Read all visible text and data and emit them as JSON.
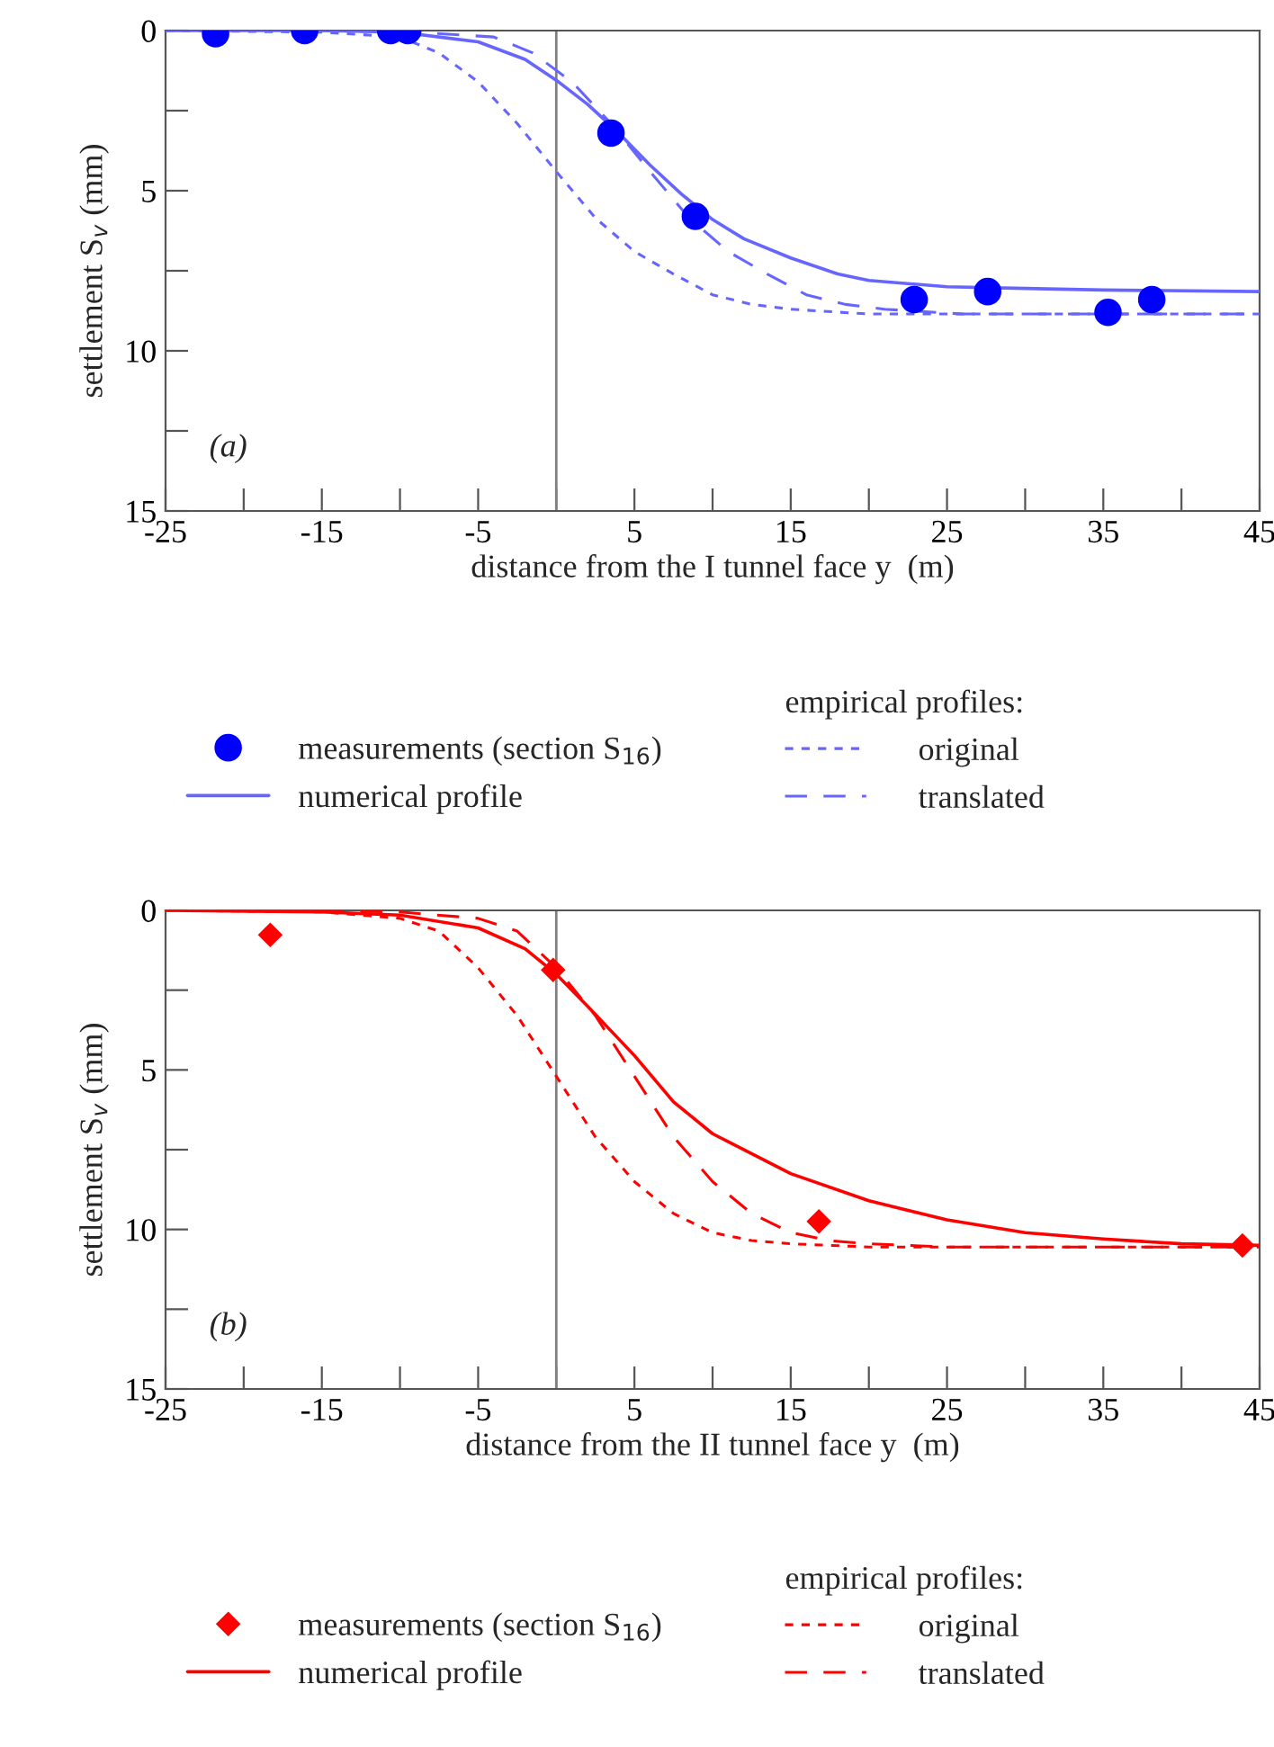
{
  "chart_data": [
    {
      "type": "line",
      "xlabel": "distance from the I tunnel face y  (m)",
      "ylabel": "settlement S$_{v}$ (mm)",
      "legend_title": "empirical profiles:",
      "legend": "bottom",
      "xlim": [
        -25,
        45
      ],
      "xticks": [
        -25,
        {
          "value": -20,
          "label": null
        },
        -15,
        {
          "value": -10,
          "label": null
        },
        -5,
        {
          "value": 0,
          "label": null
        },
        5,
        {
          "value": 10,
          "label": null
        },
        15,
        {
          "value": 20,
          "label": null
        },
        25,
        {
          "value": 30,
          "label": null
        },
        35,
        {
          "value": 40,
          "label": null
        },
        45
      ],
      "ylim": [
        15,
        0
      ],
      "yticks": [
        0,
        {
          "value": 2.5,
          "label": null
        },
        5,
        {
          "value": 7.5,
          "label": null
        },
        10,
        {
          "value": 12.5,
          "label": null
        },
        15
      ],
      "ref_lines": [
        {
          "axis": "x",
          "value": 0,
          "color": "#808080"
        }
      ],
      "annotations": [
        "(a)"
      ],
      "series": [
        {
          "name": "measurements (section S$_{16}$)",
          "type": "scatter",
          "marker": "circle",
          "color": "#0000ff",
          "x": [
            -21.8,
            -16.1,
            -10.6,
            -9.5,
            3.5,
            8.9,
            22.9,
            27.6,
            35.3,
            38.1
          ],
          "values": [
            0.1,
            0.0,
            0.0,
            0.0,
            3.2,
            5.8,
            8.4,
            8.15,
            8.8,
            8.4
          ]
        },
        {
          "name": "numerical profile",
          "type": "line",
          "line_style": "solid",
          "color": "#6666ff",
          "x": [
            -25,
            -15,
            -10,
            -5,
            -2,
            0,
            2,
            4,
            6,
            8,
            10,
            12,
            15,
            18,
            20,
            25,
            30,
            35,
            45
          ],
          "values": [
            0,
            0,
            0.05,
            0.35,
            0.9,
            1.55,
            2.3,
            3.2,
            4.2,
            5.1,
            5.9,
            6.5,
            7.1,
            7.6,
            7.8,
            8.0,
            8.05,
            8.1,
            8.15
          ]
        },
        {
          "name": "original",
          "type": "line",
          "line_style": "dotted",
          "color": "#6666ff",
          "x": [
            -25,
            -15,
            -10,
            -7.5,
            -5,
            -2.5,
            0,
            2.5,
            5,
            7.5,
            10,
            12.5,
            15,
            20,
            45
          ],
          "values": [
            0,
            0.05,
            0.2,
            0.7,
            1.6,
            2.9,
            4.4,
            5.85,
            6.9,
            7.6,
            8.25,
            8.55,
            8.7,
            8.85,
            8.85
          ]
        },
        {
          "name": "translated",
          "type": "line",
          "line_style": "dashed",
          "color": "#6666ff",
          "x": [
            -15,
            -9,
            -4,
            -1.5,
            1,
            3.5,
            6,
            8.5,
            11,
            13.5,
            16,
            18.5,
            21,
            26,
            45
          ],
          "values": [
            0,
            0.05,
            0.2,
            0.7,
            1.6,
            2.9,
            4.4,
            5.85,
            6.9,
            7.6,
            8.25,
            8.55,
            8.7,
            8.85,
            8.85
          ]
        }
      ]
    },
    {
      "type": "line",
      "xlabel": "distance from the II tunnel face y  (m)",
      "ylabel": "settlement S$_{v}$ (mm)",
      "legend_title": "empirical profiles:",
      "legend": "bottom",
      "xlim": [
        -25,
        45
      ],
      "xticks": [
        -25,
        {
          "value": -20,
          "label": null
        },
        -15,
        {
          "value": -10,
          "label": null
        },
        -5,
        {
          "value": 0,
          "label": null
        },
        5,
        {
          "value": 10,
          "label": null
        },
        15,
        {
          "value": 20,
          "label": null
        },
        25,
        {
          "value": 30,
          "label": null
        },
        35,
        {
          "value": 40,
          "label": null
        },
        45
      ],
      "ylim": [
        15,
        0
      ],
      "yticks": [
        0,
        {
          "value": 2.5,
          "label": null
        },
        5,
        {
          "value": 7.5,
          "label": null
        },
        10,
        {
          "value": 12.5,
          "label": null
        },
        15
      ],
      "ref_lines": [
        {
          "axis": "x",
          "value": 0,
          "color": "#808080"
        }
      ],
      "annotations": [
        "(b)"
      ],
      "series": [
        {
          "name": "measurements (section S$_{16}$)",
          "type": "scatter",
          "marker": "diamond",
          "color": "#ff0000",
          "x": [
            -18.3,
            -0.2,
            16.8,
            43.9
          ],
          "values": [
            0.77,
            1.87,
            9.75,
            10.5
          ]
        },
        {
          "name": "numerical profile",
          "type": "line",
          "line_style": "solid",
          "color": "#ff0000",
          "x": [
            -25,
            -15,
            -10,
            -5,
            -2,
            0,
            2,
            5,
            7.5,
            10,
            15,
            20,
            25,
            30,
            35,
            40,
            45
          ],
          "values": [
            0,
            0.05,
            0.15,
            0.55,
            1.2,
            2.0,
            3.0,
            4.55,
            6.0,
            7.0,
            8.25,
            9.1,
            9.7,
            10.1,
            10.3,
            10.45,
            10.5
          ]
        },
        {
          "name": "original",
          "type": "line",
          "line_style": "dotted",
          "color": "#ff0000",
          "x": [
            -25,
            -15,
            -10,
            -7.5,
            -5,
            -2.5,
            0,
            2.5,
            5,
            7.5,
            10,
            12.5,
            15,
            20,
            45
          ],
          "values": [
            0,
            0.05,
            0.25,
            0.65,
            1.8,
            3.3,
            5.2,
            7.1,
            8.5,
            9.5,
            10.1,
            10.35,
            10.45,
            10.55,
            10.55
          ]
        },
        {
          "name": "translated",
          "type": "line",
          "line_style": "dashed",
          "color": "#ff0000",
          "x": [
            -15,
            -10,
            -5,
            -2.5,
            0,
            2.5,
            5,
            7.5,
            10,
            12.5,
            15,
            17.5,
            20,
            25,
            45
          ],
          "values": [
            0,
            0.05,
            0.25,
            0.65,
            1.8,
            3.3,
            5.2,
            7.1,
            8.5,
            9.5,
            10.1,
            10.35,
            10.45,
            10.55,
            10.55
          ]
        }
      ]
    }
  ]
}
